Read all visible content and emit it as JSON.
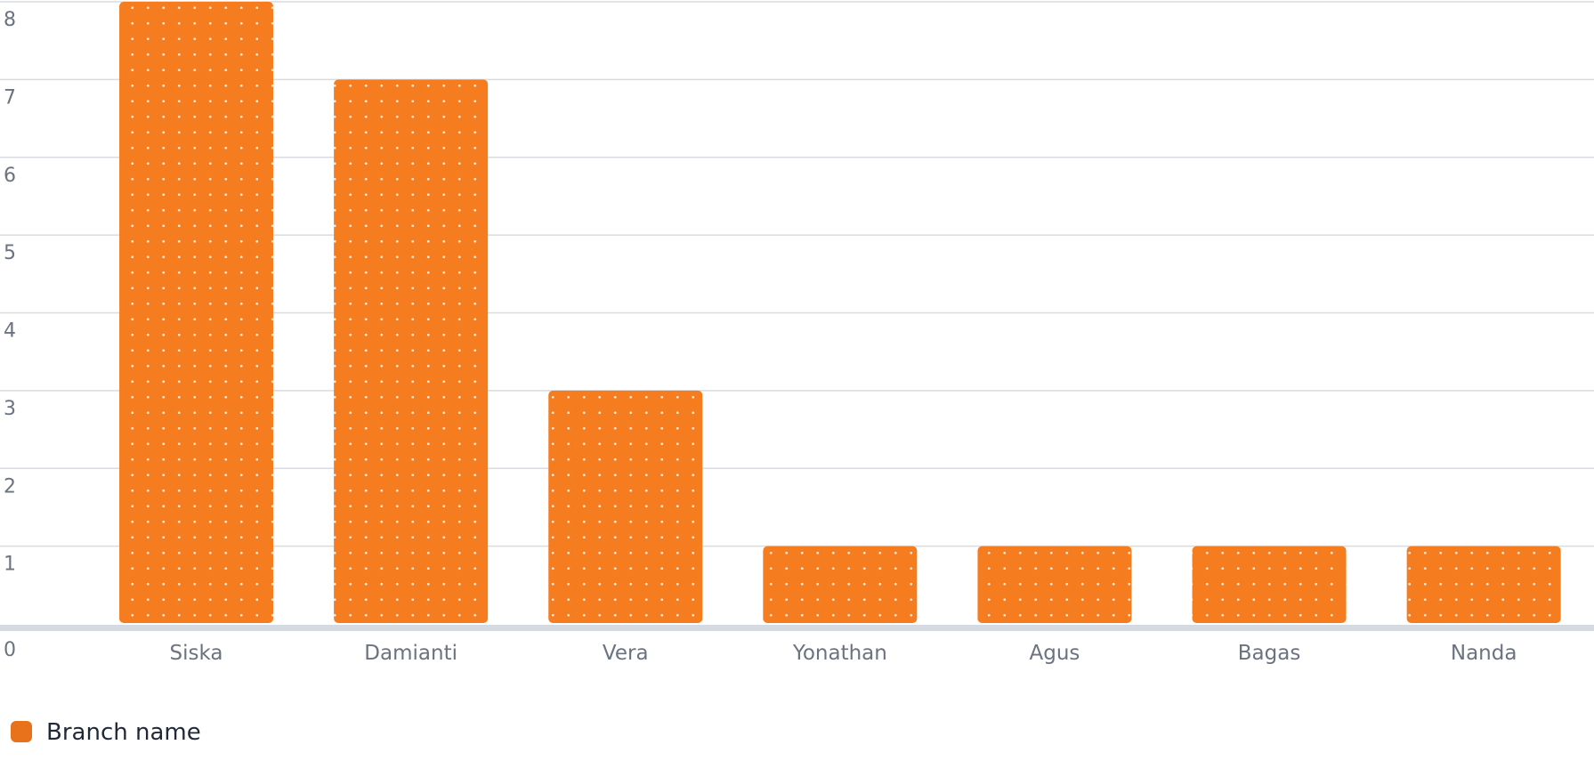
{
  "chart_data": {
    "type": "bar",
    "categories": [
      "Siska",
      "Damianti",
      "Vera",
      "Yonathan",
      "Agus",
      "Bagas",
      "Nanda"
    ],
    "series": [
      {
        "name": "Branch name",
        "values": [
          8,
          7,
          3,
          1,
          1,
          1,
          1
        ],
        "color": "#f57c1f"
      }
    ],
    "ylim": [
      0,
      8
    ],
    "yticks": [
      0,
      1,
      2,
      3,
      4,
      5,
      6,
      7,
      8
    ],
    "grid": true,
    "legend": "bottom-left",
    "bar_pattern": "dots"
  },
  "legend": {
    "label": "Branch name",
    "swatch_color": "#e8711c"
  }
}
